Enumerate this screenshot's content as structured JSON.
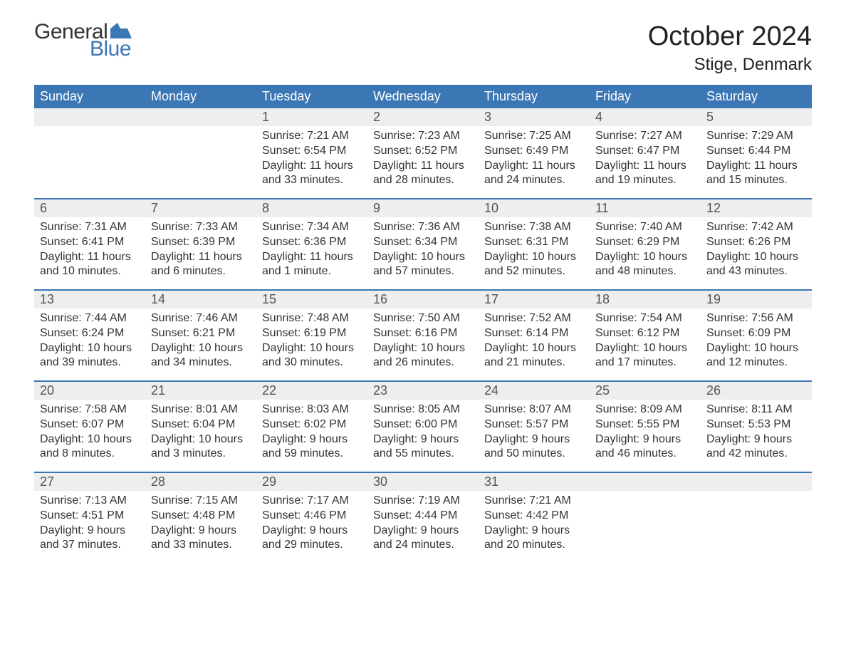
{
  "logo": {
    "word1": "General",
    "word2": "Blue",
    "flag_color": "#3b76b5"
  },
  "title": "October 2024",
  "location": "Stige, Denmark",
  "colors": {
    "header_bg": "#3b76b5",
    "header_text": "#ffffff",
    "daynum_bg": "#eeeeee",
    "row_divider": "#3b76b5",
    "body_text": "#333333",
    "page_bg": "#ffffff"
  },
  "weekdays": [
    "Sunday",
    "Monday",
    "Tuesday",
    "Wednesday",
    "Thursday",
    "Friday",
    "Saturday"
  ],
  "weeks": [
    [
      {
        "num": "",
        "sunrise": "",
        "sunset": "",
        "daylight1": "",
        "daylight2": "",
        "empty": true
      },
      {
        "num": "",
        "sunrise": "",
        "sunset": "",
        "daylight1": "",
        "daylight2": "",
        "empty": true
      },
      {
        "num": "1",
        "sunrise": "Sunrise: 7:21 AM",
        "sunset": "Sunset: 6:54 PM",
        "daylight1": "Daylight: 11 hours",
        "daylight2": "and 33 minutes."
      },
      {
        "num": "2",
        "sunrise": "Sunrise: 7:23 AM",
        "sunset": "Sunset: 6:52 PM",
        "daylight1": "Daylight: 11 hours",
        "daylight2": "and 28 minutes."
      },
      {
        "num": "3",
        "sunrise": "Sunrise: 7:25 AM",
        "sunset": "Sunset: 6:49 PM",
        "daylight1": "Daylight: 11 hours",
        "daylight2": "and 24 minutes."
      },
      {
        "num": "4",
        "sunrise": "Sunrise: 7:27 AM",
        "sunset": "Sunset: 6:47 PM",
        "daylight1": "Daylight: 11 hours",
        "daylight2": "and 19 minutes."
      },
      {
        "num": "5",
        "sunrise": "Sunrise: 7:29 AM",
        "sunset": "Sunset: 6:44 PM",
        "daylight1": "Daylight: 11 hours",
        "daylight2": "and 15 minutes."
      }
    ],
    [
      {
        "num": "6",
        "sunrise": "Sunrise: 7:31 AM",
        "sunset": "Sunset: 6:41 PM",
        "daylight1": "Daylight: 11 hours",
        "daylight2": "and 10 minutes."
      },
      {
        "num": "7",
        "sunrise": "Sunrise: 7:33 AM",
        "sunset": "Sunset: 6:39 PM",
        "daylight1": "Daylight: 11 hours",
        "daylight2": "and 6 minutes."
      },
      {
        "num": "8",
        "sunrise": "Sunrise: 7:34 AM",
        "sunset": "Sunset: 6:36 PM",
        "daylight1": "Daylight: 11 hours",
        "daylight2": "and 1 minute."
      },
      {
        "num": "9",
        "sunrise": "Sunrise: 7:36 AM",
        "sunset": "Sunset: 6:34 PM",
        "daylight1": "Daylight: 10 hours",
        "daylight2": "and 57 minutes."
      },
      {
        "num": "10",
        "sunrise": "Sunrise: 7:38 AM",
        "sunset": "Sunset: 6:31 PM",
        "daylight1": "Daylight: 10 hours",
        "daylight2": "and 52 minutes."
      },
      {
        "num": "11",
        "sunrise": "Sunrise: 7:40 AM",
        "sunset": "Sunset: 6:29 PM",
        "daylight1": "Daylight: 10 hours",
        "daylight2": "and 48 minutes."
      },
      {
        "num": "12",
        "sunrise": "Sunrise: 7:42 AM",
        "sunset": "Sunset: 6:26 PM",
        "daylight1": "Daylight: 10 hours",
        "daylight2": "and 43 minutes."
      }
    ],
    [
      {
        "num": "13",
        "sunrise": "Sunrise: 7:44 AM",
        "sunset": "Sunset: 6:24 PM",
        "daylight1": "Daylight: 10 hours",
        "daylight2": "and 39 minutes."
      },
      {
        "num": "14",
        "sunrise": "Sunrise: 7:46 AM",
        "sunset": "Sunset: 6:21 PM",
        "daylight1": "Daylight: 10 hours",
        "daylight2": "and 34 minutes."
      },
      {
        "num": "15",
        "sunrise": "Sunrise: 7:48 AM",
        "sunset": "Sunset: 6:19 PM",
        "daylight1": "Daylight: 10 hours",
        "daylight2": "and 30 minutes."
      },
      {
        "num": "16",
        "sunrise": "Sunrise: 7:50 AM",
        "sunset": "Sunset: 6:16 PM",
        "daylight1": "Daylight: 10 hours",
        "daylight2": "and 26 minutes."
      },
      {
        "num": "17",
        "sunrise": "Sunrise: 7:52 AM",
        "sunset": "Sunset: 6:14 PM",
        "daylight1": "Daylight: 10 hours",
        "daylight2": "and 21 minutes."
      },
      {
        "num": "18",
        "sunrise": "Sunrise: 7:54 AM",
        "sunset": "Sunset: 6:12 PM",
        "daylight1": "Daylight: 10 hours",
        "daylight2": "and 17 minutes."
      },
      {
        "num": "19",
        "sunrise": "Sunrise: 7:56 AM",
        "sunset": "Sunset: 6:09 PM",
        "daylight1": "Daylight: 10 hours",
        "daylight2": "and 12 minutes."
      }
    ],
    [
      {
        "num": "20",
        "sunrise": "Sunrise: 7:58 AM",
        "sunset": "Sunset: 6:07 PM",
        "daylight1": "Daylight: 10 hours",
        "daylight2": "and 8 minutes."
      },
      {
        "num": "21",
        "sunrise": "Sunrise: 8:01 AM",
        "sunset": "Sunset: 6:04 PM",
        "daylight1": "Daylight: 10 hours",
        "daylight2": "and 3 minutes."
      },
      {
        "num": "22",
        "sunrise": "Sunrise: 8:03 AM",
        "sunset": "Sunset: 6:02 PM",
        "daylight1": "Daylight: 9 hours",
        "daylight2": "and 59 minutes."
      },
      {
        "num": "23",
        "sunrise": "Sunrise: 8:05 AM",
        "sunset": "Sunset: 6:00 PM",
        "daylight1": "Daylight: 9 hours",
        "daylight2": "and 55 minutes."
      },
      {
        "num": "24",
        "sunrise": "Sunrise: 8:07 AM",
        "sunset": "Sunset: 5:57 PM",
        "daylight1": "Daylight: 9 hours",
        "daylight2": "and 50 minutes."
      },
      {
        "num": "25",
        "sunrise": "Sunrise: 8:09 AM",
        "sunset": "Sunset: 5:55 PM",
        "daylight1": "Daylight: 9 hours",
        "daylight2": "and 46 minutes."
      },
      {
        "num": "26",
        "sunrise": "Sunrise: 8:11 AM",
        "sunset": "Sunset: 5:53 PM",
        "daylight1": "Daylight: 9 hours",
        "daylight2": "and 42 minutes."
      }
    ],
    [
      {
        "num": "27",
        "sunrise": "Sunrise: 7:13 AM",
        "sunset": "Sunset: 4:51 PM",
        "daylight1": "Daylight: 9 hours",
        "daylight2": "and 37 minutes."
      },
      {
        "num": "28",
        "sunrise": "Sunrise: 7:15 AM",
        "sunset": "Sunset: 4:48 PM",
        "daylight1": "Daylight: 9 hours",
        "daylight2": "and 33 minutes."
      },
      {
        "num": "29",
        "sunrise": "Sunrise: 7:17 AM",
        "sunset": "Sunset: 4:46 PM",
        "daylight1": "Daylight: 9 hours",
        "daylight2": "and 29 minutes."
      },
      {
        "num": "30",
        "sunrise": "Sunrise: 7:19 AM",
        "sunset": "Sunset: 4:44 PM",
        "daylight1": "Daylight: 9 hours",
        "daylight2": "and 24 minutes."
      },
      {
        "num": "31",
        "sunrise": "Sunrise: 7:21 AM",
        "sunset": "Sunset: 4:42 PM",
        "daylight1": "Daylight: 9 hours",
        "daylight2": "and 20 minutes."
      },
      {
        "num": "",
        "sunrise": "",
        "sunset": "",
        "daylight1": "",
        "daylight2": "",
        "empty": true
      },
      {
        "num": "",
        "sunrise": "",
        "sunset": "",
        "daylight1": "",
        "daylight2": "",
        "empty": true
      }
    ]
  ]
}
